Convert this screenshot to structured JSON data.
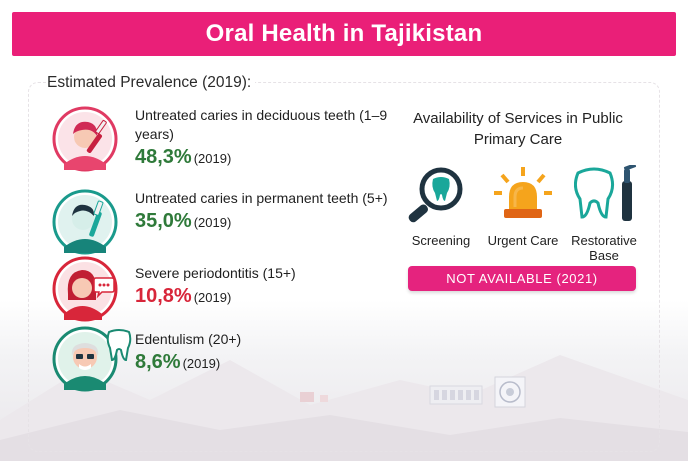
{
  "title": "Oral Health in Tajikistan",
  "section_label": "Estimated Prevalence (2019):",
  "items": [
    {
      "label": "Untreated caries in deciduous teeth (1–9 years)",
      "value": "48,3%",
      "year": "(2019)",
      "color": "#2f7a3a",
      "icon": "child-toothbrush-icon"
    },
    {
      "label": "Untreated caries in permanent teeth (5+)",
      "value": "35,0%",
      "year": "(2019)",
      "color": "#2f7a3a",
      "icon": "boy-toothbrush-icon"
    },
    {
      "label": "Severe periodontitis (15+)",
      "value": "10,8%",
      "year": "(2019)",
      "color": "#d8263a",
      "icon": "woman-speech-icon"
    },
    {
      "label": "Edentulism (20+)",
      "value": "8,6%",
      "year": "(2019)",
      "color": "#2f7a3a",
      "icon": "elder-tooth-icon"
    }
  ],
  "services": {
    "title": "Availability of Services in Public Primary Care",
    "list": [
      {
        "label": "Screening",
        "icon": "magnifier-tooth-icon"
      },
      {
        "label": "Urgent Care",
        "icon": "siren-icon"
      },
      {
        "label": "Restorative Base",
        "icon": "tooth-drill-icon"
      }
    ],
    "status": "NOT AVAILABLE (2021)"
  },
  "colors": {
    "brand": "#ea1f78",
    "green": "#2f7a3a",
    "red": "#d8263a",
    "teal": "#1aa79a"
  }
}
